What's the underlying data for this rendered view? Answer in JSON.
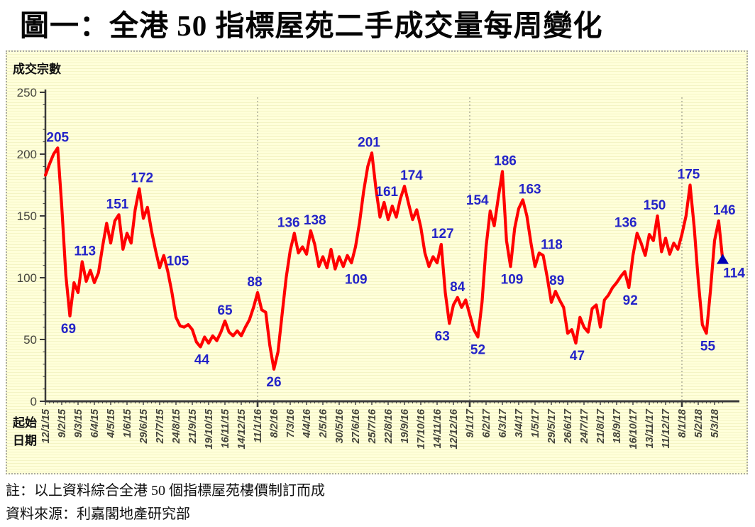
{
  "page": {
    "title": "圖一：全港 50 指標屋苑二手成交量每周變化"
  },
  "notes": {
    "line1": "註：以上資料綜合全港 50 個指標屋苑樓價制訂而成",
    "line2": "資料來源：利嘉閣地產研究部"
  },
  "chart_data": {
    "type": "line",
    "title": "圖一：全港 50 指標屋苑二手成交量每周變化",
    "ylabel": "成交宗數",
    "xlabel": "起始日期",
    "xlabel_lines": [
      "起始",
      "日期"
    ],
    "ylim": [
      0,
      250
    ],
    "yticks": [
      0,
      50,
      100,
      150,
      200,
      250
    ],
    "y_minor_tick_step": 10,
    "weeks_per_tick": 4,
    "grid": false,
    "legend": false,
    "x_tick_labels": [
      "12/1/15",
      "9/2/15",
      "9/3/15",
      "6/4/15",
      "4/5/15",
      "1/6/15",
      "29/6/15",
      "27/7/15",
      "24/8/15",
      "21/9/15",
      "19/10/15",
      "16/11/15",
      "14/12/15",
      "11/1/16",
      "8/2/16",
      "7/3/16",
      "4/4/16",
      "2/5/16",
      "30/5/16",
      "27/6/16",
      "25/7/16",
      "22/8/16",
      "19/9/16",
      "17/10/16",
      "14/11/16",
      "12/12/16",
      "9/1/17",
      "6/2/17",
      "6/3/17",
      "3/4/17",
      "1/5/17",
      "29/5/17",
      "26/6/17",
      "24/7/17",
      "21/8/17",
      "18/9/17",
      "16/10/17",
      "13/11/17",
      "11/12/17",
      "8/1/18",
      "5/2/18",
      "5/3/18"
    ],
    "year_separators": [
      "11/1/16",
      "9/1/17",
      "8/1/18"
    ],
    "values": [
      183,
      192,
      200,
      205,
      158,
      102,
      69,
      96,
      88,
      113,
      97,
      106,
      96,
      104,
      125,
      144,
      128,
      146,
      151,
      123,
      136,
      128,
      155,
      172,
      148,
      157,
      138,
      122,
      108,
      118,
      105,
      88,
      68,
      61,
      60,
      62,
      58,
      48,
      44,
      52,
      47,
      53,
      49,
      56,
      65,
      56,
      53,
      57,
      53,
      60,
      66,
      76,
      88,
      74,
      72,
      45,
      26,
      40,
      70,
      100,
      122,
      136,
      120,
      125,
      119,
      138,
      127,
      109,
      117,
      108,
      123,
      107,
      117,
      109,
      118,
      112,
      125,
      145,
      170,
      190,
      201,
      172,
      149,
      161,
      147,
      158,
      149,
      164,
      174,
      160,
      147,
      155,
      141,
      120,
      109,
      117,
      112,
      127,
      88,
      63,
      78,
      84,
      76,
      82,
      70,
      58,
      52,
      80,
      125,
      154,
      142,
      165,
      186,
      130,
      109,
      140,
      156,
      163,
      150,
      128,
      109,
      120,
      118,
      100,
      80,
      89,
      82,
      76,
      55,
      58,
      47,
      68,
      60,
      56,
      75,
      78,
      60,
      82,
      86,
      92,
      96,
      101,
      105,
      92,
      118,
      136,
      128,
      118,
      135,
      130,
      150,
      121,
      132,
      119,
      128,
      123,
      135,
      150,
      175,
      141,
      98,
      62,
      55,
      90,
      130,
      146,
      114
    ],
    "point_labels": [
      {
        "week": 3,
        "value": 205,
        "placement": "above",
        "dx": 0
      },
      {
        "week": 6,
        "value": 69,
        "placement": "below",
        "dx": -2
      },
      {
        "week": 9,
        "value": 113,
        "placement": "above",
        "dx": 4
      },
      {
        "week": 18,
        "value": 151,
        "placement": "above",
        "dx": -2
      },
      {
        "week": 23,
        "value": 172,
        "placement": "above",
        "dx": 4
      },
      {
        "week": 30,
        "value": 105,
        "placement": "above",
        "dx": 14
      },
      {
        "week": 38,
        "value": 44,
        "placement": "below",
        "dx": 2
      },
      {
        "week": 44,
        "value": 65,
        "placement": "above",
        "dx": 0
      },
      {
        "week": 52,
        "value": 88,
        "placement": "above",
        "dx": -4
      },
      {
        "week": 56,
        "value": 26,
        "placement": "below",
        "dx": 0
      },
      {
        "week": 61,
        "value": 136,
        "placement": "above",
        "dx": -8
      },
      {
        "week": 65,
        "value": 138,
        "placement": "above",
        "dx": 6
      },
      {
        "week": 73,
        "value": 109,
        "placement": "below",
        "dx": 18
      },
      {
        "week": 80,
        "value": 201,
        "placement": "above",
        "dx": -4
      },
      {
        "week": 83,
        "value": 161,
        "placement": "above",
        "dx": 4
      },
      {
        "week": 88,
        "value": 174,
        "placement": "above",
        "dx": 10
      },
      {
        "week": 97,
        "value": 127,
        "placement": "above",
        "dx": 2
      },
      {
        "week": 99,
        "value": 63,
        "placement": "below",
        "dx": -10
      },
      {
        "week": 101,
        "value": 84,
        "placement": "above",
        "dx": 0
      },
      {
        "week": 106,
        "value": 52,
        "placement": "below",
        "dx": 0
      },
      {
        "week": 109,
        "value": 154,
        "placement": "above",
        "dx": -18
      },
      {
        "week": 112,
        "value": 186,
        "placement": "above",
        "dx": 4
      },
      {
        "week": 114,
        "value": 109,
        "placement": "below",
        "dx": 2
      },
      {
        "week": 117,
        "value": 163,
        "placement": "above",
        "dx": 10
      },
      {
        "week": 122,
        "value": 118,
        "placement": "above",
        "dx": 12
      },
      {
        "week": 125,
        "value": 89,
        "placement": "above",
        "dx": 2
      },
      {
        "week": 130,
        "value": 47,
        "placement": "below",
        "dx": 2
      },
      {
        "week": 143,
        "value": 92,
        "placement": "below",
        "dx": 2
      },
      {
        "week": 145,
        "value": 136,
        "placement": "above",
        "dx": -16
      },
      {
        "week": 150,
        "value": 150,
        "placement": "above",
        "dx": -4
      },
      {
        "week": 158,
        "value": 175,
        "placement": "above",
        "dx": -2
      },
      {
        "week": 162,
        "value": 55,
        "placement": "below",
        "dx": 2
      },
      {
        "week": 165,
        "value": 146,
        "placement": "above",
        "dx": 8
      },
      {
        "week": 166,
        "value": 114,
        "placement": "below",
        "dx": 16
      }
    ],
    "latest_marker": {
      "week": 166,
      "value": 114,
      "shape": "triangle-up"
    },
    "colors": {
      "line": "#FF0000",
      "point_label": "#2323C8",
      "marker": "#0000B4",
      "axis": "#3A3A3A",
      "tick_label": "#44443C",
      "background": "#FFFFDA",
      "stripe": "#F4F4C4",
      "separator": "#9A9A88"
    }
  }
}
